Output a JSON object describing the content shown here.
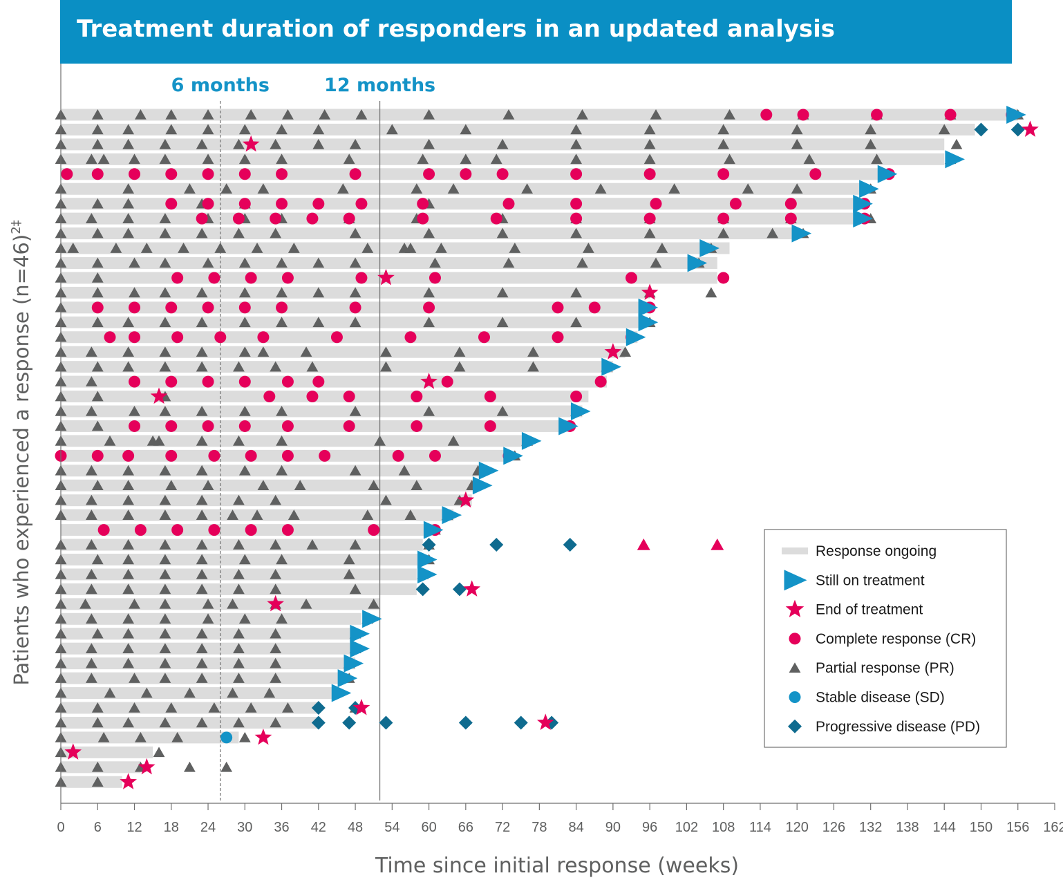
{
  "chart_data": {
    "type": "swimmer",
    "title": "Treatment duration of responders in an updated analysis",
    "xlabel": "Time since initial response (weeks)",
    "ylabel": "Patients who experienced a response (n=46)",
    "ylabel_sup": "2‡",
    "xlim": [
      0,
      162
    ],
    "xticks": [
      0,
      6,
      12,
      18,
      24,
      30,
      36,
      42,
      48,
      54,
      60,
      66,
      72,
      78,
      84,
      90,
      96,
      102,
      108,
      114,
      120,
      126,
      132,
      138,
      144,
      150,
      156,
      162
    ],
    "reference_lines": [
      {
        "label": "6 months",
        "x": 26
      },
      {
        "label": "12 months",
        "x": 52
      }
    ],
    "legend": {
      "placement": "bottom-right",
      "items": [
        {
          "key": "bar",
          "label": "Response ongoing"
        },
        {
          "key": "ontx",
          "label": "Still on treatment"
        },
        {
          "key": "eot",
          "label": "End of treatment"
        },
        {
          "key": "CR",
          "label": "Complete response (CR)"
        },
        {
          "key": "PR",
          "label": "Partial response (PR)"
        },
        {
          "key": "SD",
          "label": "Stable disease (SD)"
        },
        {
          "key": "PD",
          "label": "Progressive disease (PD)"
        }
      ]
    },
    "colors": {
      "title_bg": "#0a8fc4",
      "bar": "#dcdcdc",
      "CR": "#e5005a",
      "PR": "#5f6060",
      "SD": "#1493c7",
      "PD": "#0f6b8f",
      "ontx": "#1493c7",
      "eot": "#e5005a",
      "ref_label": "#1493c7",
      "axis_text": "#5f6060"
    },
    "patients": [
      {
        "bar": 156,
        "pr": [
          0,
          6,
          13,
          18,
          24,
          31,
          37,
          43,
          49,
          60,
          73,
          85,
          97,
          109,
          121,
          133,
          145,
          156
        ],
        "cr": [
          115,
          121,
          133,
          145,
          155
        ],
        "ontx": 155
      },
      {
        "bar": 149,
        "pr": [
          0,
          6,
          11,
          18,
          24,
          30,
          36,
          42,
          54,
          66,
          84,
          96,
          108,
          120,
          132,
          144
        ],
        "pd": [
          150,
          156
        ],
        "eot": 158
      },
      {
        "bar": 144,
        "pr": [
          0,
          6,
          11,
          17,
          23,
          29,
          35,
          42,
          48,
          60,
          72,
          84,
          96,
          108,
          120,
          132,
          146
        ],
        "eot": 31
      },
      {
        "bar": 144,
        "pr": [
          0,
          5,
          7,
          12,
          17,
          24,
          30,
          36,
          47,
          59,
          66,
          71,
          84,
          96,
          109,
          122,
          133,
          145
        ],
        "ontx": 145
      },
      {
        "bar": 134,
        "cr": [
          1,
          6,
          12,
          18,
          24,
          30,
          36,
          48,
          60,
          66,
          72,
          84,
          96,
          108,
          123,
          135
        ],
        "ontx": 134
      },
      {
        "bar": 131,
        "pr": [
          0,
          11,
          21,
          27,
          33,
          46,
          58,
          64,
          76,
          88,
          100,
          112,
          120,
          132
        ],
        "ontx": 131
      },
      {
        "bar": 131,
        "pr": [
          0,
          6,
          11,
          23,
          30,
          60
        ],
        "cr": [
          18,
          24,
          30,
          36,
          42,
          49,
          59,
          73,
          84,
          97,
          110,
          119,
          131
        ],
        "ontx": 130
      },
      {
        "bar": 130,
        "pr": [
          0,
          5,
          11,
          17,
          24,
          30,
          36,
          47,
          58,
          72,
          84,
          96,
          108,
          119,
          132
        ],
        "cr": [
          23,
          29,
          35,
          41,
          47,
          59,
          71,
          84,
          96,
          108,
          119,
          131
        ],
        "ontx": 130
      },
      {
        "bar": 120,
        "pr": [
          0,
          6,
          11,
          17,
          23,
          29,
          35,
          48,
          60,
          72,
          84,
          96,
          108,
          116,
          121
        ],
        "ontx": 120
      },
      {
        "bar": 109,
        "pr": [
          0,
          2,
          9,
          14,
          20,
          26,
          32,
          38,
          50,
          56,
          57,
          62,
          74,
          86,
          98,
          106
        ],
        "ontx": 105
      },
      {
        "bar": 107,
        "pr": [
          0,
          6,
          12,
          17,
          24,
          30,
          36,
          42,
          48,
          61,
          73,
          85,
          97,
          104
        ],
        "ontx": 103
      },
      {
        "bar": 107,
        "pr": [
          0,
          6
        ],
        "cr": [
          19,
          25,
          31,
          37,
          49,
          61,
          93,
          108
        ],
        "eot": 53
      },
      {
        "bar": 96,
        "pr": [
          0,
          6,
          12,
          17,
          23,
          30,
          36,
          42,
          48,
          60,
          72,
          84,
          96,
          106
        ],
        "eot": 96
      },
      {
        "bar": 96,
        "pr": [
          0
        ],
        "cr": [
          6,
          12,
          18,
          24,
          30,
          36,
          48,
          60,
          81,
          87,
          96
        ],
        "ontx": 95
      },
      {
        "bar": 95,
        "pr": [
          0,
          6,
          11,
          17,
          23,
          30,
          36,
          42,
          48,
          60,
          72,
          84,
          96
        ],
        "ontx": 95
      },
      {
        "bar": 94,
        "pr": [
          0
        ],
        "cr": [
          8,
          12,
          19,
          26,
          33,
          45,
          57,
          69,
          81,
          93
        ],
        "ontx": 93
      },
      {
        "bar": 92,
        "pr": [
          0,
          5,
          11,
          17,
          23,
          30,
          33,
          40,
          53,
          65,
          77,
          92
        ],
        "eot": 90
      },
      {
        "bar": 90,
        "pr": [
          0,
          6,
          11,
          17,
          23,
          29,
          35,
          41,
          53,
          65,
          77,
          89
        ],
        "ontx": 89
      },
      {
        "bar": 89,
        "pr": [
          0,
          5
        ],
        "cr": [
          12,
          18,
          24,
          30,
          37,
          42,
          63,
          88
        ],
        "eot": 60
      },
      {
        "bar": 86,
        "pr": [
          0,
          6,
          17
        ],
        "cr": [
          34,
          41,
          47,
          58,
          70,
          84
        ],
        "eot": 16
      },
      {
        "bar": 85,
        "pr": [
          0,
          5,
          12,
          17,
          23,
          30,
          36,
          48,
          60,
          72,
          84
        ],
        "ontx": 84
      },
      {
        "bar": 83,
        "pr": [
          0,
          6
        ],
        "cr": [
          12,
          18,
          24,
          30,
          37,
          47,
          58,
          70,
          83
        ],
        "ontx": 82
      },
      {
        "bar": 76,
        "pr": [
          0,
          8,
          15,
          16,
          23,
          29,
          36,
          52,
          64,
          76
        ],
        "ontx": 76
      },
      {
        "bar": 73,
        "pr": [
          74
        ],
        "cr": [
          0,
          6,
          11,
          18,
          25,
          31,
          37,
          43,
          55,
          61,
          73
        ],
        "ontx": 73
      },
      {
        "bar": 69,
        "pr": [
          0,
          5,
          11,
          17,
          23,
          30,
          36,
          48,
          56,
          68
        ],
        "ontx": 69
      },
      {
        "bar": 68,
        "pr": [
          0,
          6,
          11,
          18,
          24,
          33,
          39,
          51,
          58,
          67
        ],
        "ontx": 68
      },
      {
        "bar": 67,
        "pr": [
          0,
          5,
          11,
          17,
          23,
          29,
          35,
          53,
          65
        ],
        "eot": 66
      },
      {
        "bar": 64,
        "pr": [
          0,
          5,
          11,
          17,
          23,
          28,
          32,
          38,
          50,
          57,
          63
        ],
        "ontx": 63
      },
      {
        "bar": 61,
        "pr": [
          61
        ],
        "cr": [
          7,
          13,
          19,
          25,
          31,
          37,
          51,
          61
        ],
        "ontx": 60
      },
      {
        "bar": 59,
        "pr": [
          0,
          5,
          11,
          17,
          23,
          29,
          35,
          41,
          48,
          60
        ],
        "pd": [
          60,
          71,
          83
        ],
        "cr_sym": [
          95,
          107
        ]
      },
      {
        "bar": 59,
        "pr": [
          0,
          6,
          11,
          17,
          23,
          30,
          36,
          47,
          60
        ],
        "ontx": 59
      },
      {
        "bar": 58,
        "pr": [
          0,
          5,
          11,
          17,
          23,
          29,
          35,
          47,
          59
        ],
        "ontx": 59
      },
      {
        "bar": 58,
        "pr": [
          0,
          5,
          11,
          17,
          23,
          29,
          35,
          48
        ],
        "pd": [
          59,
          65
        ],
        "eot": 67
      },
      {
        "bar": 52,
        "pr": [
          0,
          4,
          12,
          17,
          24,
          28,
          35,
          40,
          51
        ],
        "eot": 35
      },
      {
        "bar": 49,
        "pr": [
          0,
          5,
          11,
          17,
          24,
          30,
          36,
          50
        ],
        "ontx": 50
      },
      {
        "bar": 48,
        "pr": [
          0,
          6,
          11,
          17,
          23,
          29,
          35,
          48
        ],
        "ontx": 48
      },
      {
        "bar": 48,
        "pr": [
          0,
          5,
          11,
          17,
          23,
          29,
          35,
          48
        ],
        "ontx": 48
      },
      {
        "bar": 48,
        "pr": [
          0,
          5,
          11,
          17,
          23,
          29,
          35,
          47
        ],
        "ontx": 47
      },
      {
        "bar": 46,
        "pr": [
          0,
          5,
          12,
          17,
          23,
          29,
          35,
          47
        ],
        "ontx": 46
      },
      {
        "bar": 45,
        "pr": [
          0,
          8,
          14,
          21,
          28,
          34
        ],
        "ontx": 45
      },
      {
        "bar": 42,
        "pr": [
          0,
          6,
          12,
          18,
          25,
          31,
          37,
          48
        ],
        "pd": [
          42,
          48
        ],
        "eot": 49
      },
      {
        "bar": 42,
        "pr": [
          0,
          6,
          11,
          17,
          23,
          29,
          35
        ],
        "pd": [
          42,
          47,
          53,
          66,
          75,
          80
        ],
        "eot": 79
      },
      {
        "bar": 29,
        "pr": [
          0,
          7,
          13,
          19,
          30
        ],
        "sd": [
          27
        ],
        "eot": 33
      },
      {
        "bar": 15,
        "pr": [
          0,
          16
        ],
        "eot": 2
      },
      {
        "bar": 13,
        "pr": [
          0,
          6,
          13,
          21,
          27
        ],
        "eot": 14
      },
      {
        "bar": 10,
        "pr": [
          0,
          6
        ],
        "eot": 11
      }
    ]
  }
}
